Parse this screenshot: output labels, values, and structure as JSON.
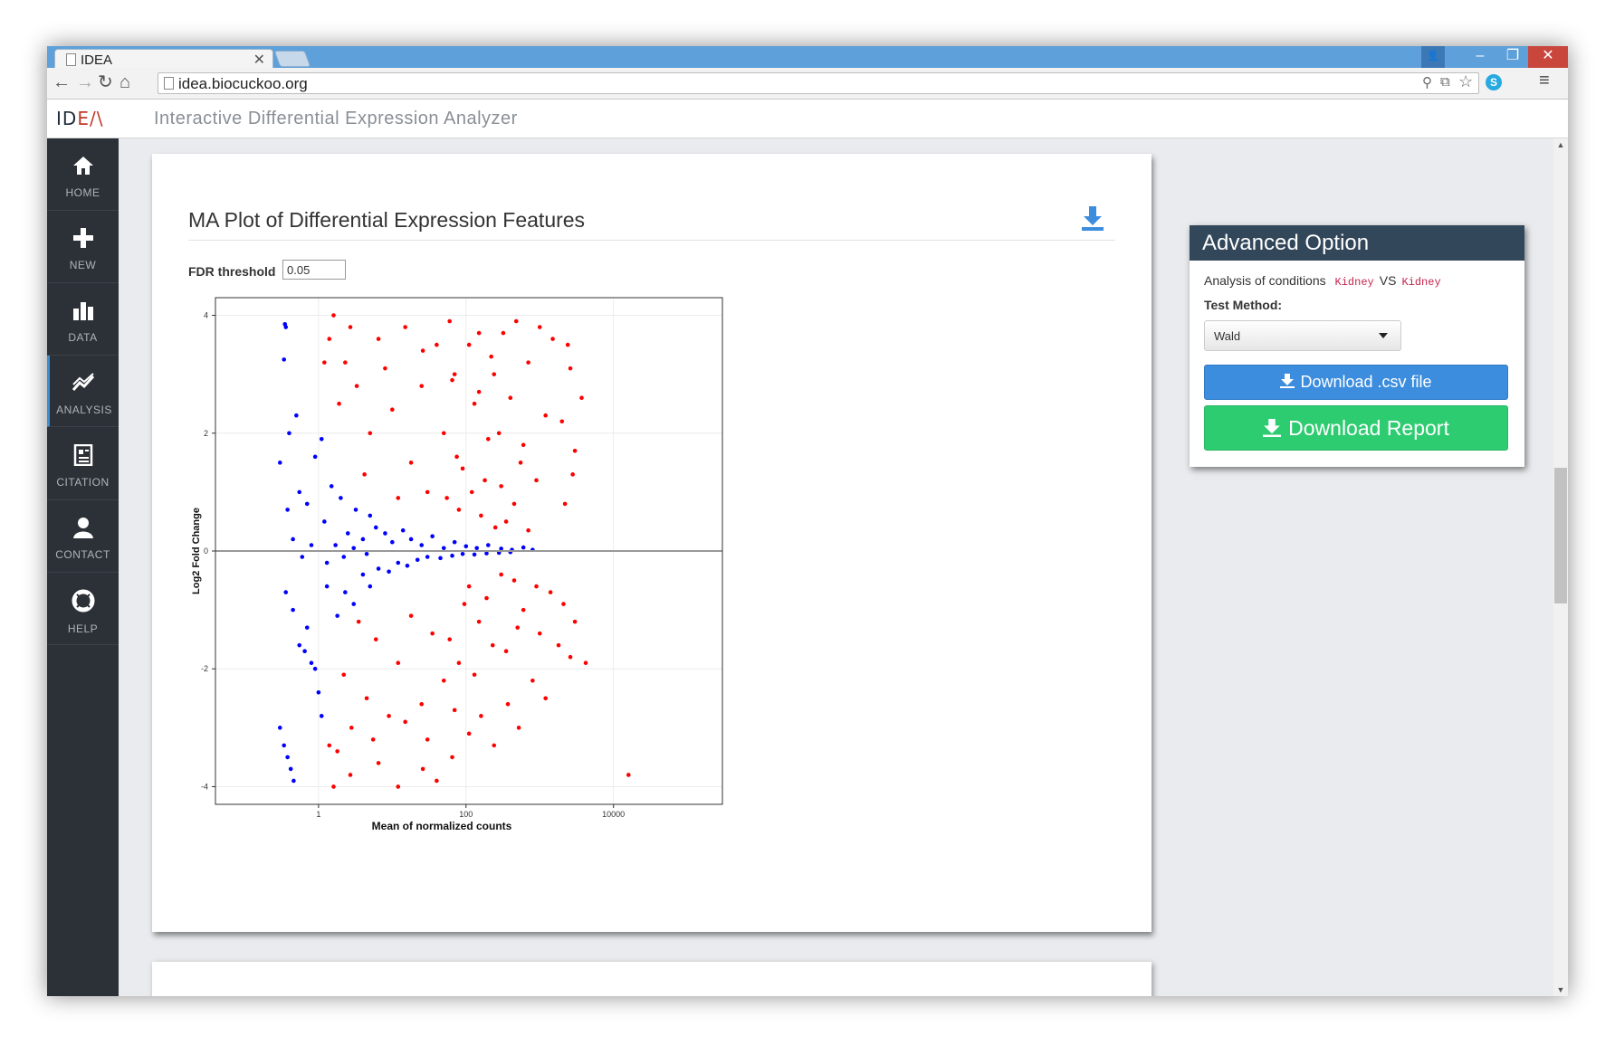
{
  "browser": {
    "tab_title": "IDEA",
    "tab_close": "×",
    "url": "idea.biocuckoo.org",
    "controls": {
      "back": "←",
      "forward": "→",
      "reload": "↻",
      "home": "⌂",
      "menu": "≡",
      "minimize": "–",
      "maximize": "❐",
      "close": "✕",
      "user": "👤",
      "zoom": "⚲",
      "translate": "⧉",
      "star": "☆",
      "skype": "S"
    }
  },
  "app": {
    "logo_main": "ID",
    "logo_accent": "E/\\",
    "title": "Interactive Differential Expression Analyzer"
  },
  "sidebar": {
    "items": [
      {
        "label": "HOME",
        "icon": "home-icon",
        "glyph": "⌂"
      },
      {
        "label": "NEW",
        "icon": "plus-icon",
        "glyph": "✚"
      },
      {
        "label": "DATA",
        "icon": "bar-chart-icon",
        "glyph": "▮"
      },
      {
        "label": "ANALYSIS",
        "icon": "line-chart-icon",
        "glyph": "⩘"
      },
      {
        "label": "CITATION",
        "icon": "document-icon",
        "glyph": "▤"
      },
      {
        "label": "CONTACT",
        "icon": "user-icon",
        "glyph": "●"
      },
      {
        "label": "HELP",
        "icon": "lifebuoy-icon",
        "glyph": "⊚"
      }
    ],
    "active": "ANALYSIS"
  },
  "main": {
    "title": "MA Plot of Differential Expression Features",
    "fdr_label": "FDR threshold",
    "fdr_value": "0.05"
  },
  "advanced": {
    "title": "Advanced Option",
    "conditions_label": "Analysis of conditions",
    "condition_a": "Kidney",
    "vs": "VS",
    "condition_b": "Kidney",
    "test_method_label": "Test Method:",
    "test_method_value": "Wald",
    "download_csv": "Download .csv file",
    "download_report": "Download Report"
  },
  "colors": {
    "significant": "#ff0000",
    "not_significant": "#0000ff",
    "csv_button": "#3c8dde",
    "report_button": "#2ecc71",
    "panel_header": "#33475a",
    "sidebar": "#2c3138"
  },
  "chart_data": {
    "type": "scatter",
    "xlabel": "Mean of normalized counts",
    "ylabel": "Log2 Fold Change",
    "x_scale": "log10",
    "xlim": [
      0.04,
      300000
    ],
    "ylim": [
      -4.3,
      4.3
    ],
    "x_ticks": [
      1,
      100,
      10000
    ],
    "x_tick_labels": [
      "1",
      "100",
      "10000"
    ],
    "y_ticks": [
      -4,
      -2,
      0,
      2,
      4
    ],
    "y_tick_labels": [
      "-4",
      "-2",
      "0",
      "2",
      "4"
    ],
    "hline": 0,
    "grid": true,
    "legend": "none",
    "series": [
      {
        "color": "#ff0000",
        "points": [
          [
            1.6,
            4.0
          ],
          [
            2.7,
            3.8
          ],
          [
            6.5,
            3.6
          ],
          [
            15,
            3.8
          ],
          [
            26,
            3.4
          ],
          [
            40,
            3.5
          ],
          [
            60,
            3.9
          ],
          [
            70,
            3.0
          ],
          [
            110,
            3.5
          ],
          [
            150,
            3.7
          ],
          [
            240,
            3.0
          ],
          [
            320,
            3.7
          ],
          [
            480,
            3.9
          ],
          [
            700,
            3.2
          ],
          [
            1000,
            3.8
          ],
          [
            1500,
            3.6
          ],
          [
            2400,
            3.5
          ],
          [
            2600,
            3.1
          ],
          [
            3700,
            2.6
          ],
          [
            2000,
            2.2
          ],
          [
            3000,
            1.7
          ],
          [
            2200,
            0.8
          ],
          [
            2800,
            1.3
          ],
          [
            1200,
            2.3
          ],
          [
            900,
            1.2
          ],
          [
            600,
            1.8
          ],
          [
            400,
            2.6
          ],
          [
            300,
            1.1
          ],
          [
            200,
            1.9
          ],
          [
            130,
            2.5
          ],
          [
            90,
            1.4
          ],
          [
            80,
            0.7
          ],
          [
            50,
            2.0
          ],
          [
            30,
            1.0
          ],
          [
            25,
            2.8
          ],
          [
            18,
            1.5
          ],
          [
            12,
            0.9
          ],
          [
            10,
            2.4
          ],
          [
            8,
            3.1
          ],
          [
            5,
            2.0
          ],
          [
            4.2,
            1.3
          ],
          [
            3.3,
            2.8
          ],
          [
            2.3,
            3.2
          ],
          [
            1.9,
            2.5
          ],
          [
            1.4,
            3.6
          ],
          [
            1.2,
            3.2
          ],
          [
            160,
            0.6
          ],
          [
            250,
            0.4
          ],
          [
            350,
            0.5
          ],
          [
            700,
            0.35
          ],
          [
            55,
            0.9
          ],
          [
            120,
            1.0
          ],
          [
            180,
            1.2
          ],
          [
            280,
            2.0
          ],
          [
            450,
            0.8
          ],
          [
            550,
            1.5
          ],
          [
            65,
            2.9
          ],
          [
            150,
            2.7
          ],
          [
            75,
            1.6
          ],
          [
            220,
            3.3
          ],
          [
            1.6,
            -4.0
          ],
          [
            2.7,
            -3.8
          ],
          [
            6.5,
            -3.6
          ],
          [
            12,
            -4.0
          ],
          [
            26,
            -3.7
          ],
          [
            40,
            -3.9
          ],
          [
            65,
            -3.5
          ],
          [
            110,
            -3.1
          ],
          [
            160,
            -2.8
          ],
          [
            240,
            -3.3
          ],
          [
            370,
            -2.6
          ],
          [
            520,
            -3.0
          ],
          [
            800,
            -2.2
          ],
          [
            1200,
            -2.5
          ],
          [
            1800,
            -1.6
          ],
          [
            2600,
            -1.8
          ],
          [
            3000,
            -1.2
          ],
          [
            2100,
            -0.9
          ],
          [
            1400,
            -0.7
          ],
          [
            900,
            -0.6
          ],
          [
            600,
            -1.0
          ],
          [
            450,
            -0.5
          ],
          [
            300,
            -0.4
          ],
          [
            230,
            -1.6
          ],
          [
            150,
            -1.2
          ],
          [
            95,
            -0.9
          ],
          [
            80,
            -1.9
          ],
          [
            50,
            -2.2
          ],
          [
            35,
            -1.4
          ],
          [
            25,
            -2.6
          ],
          [
            18,
            -1.1
          ],
          [
            12,
            -1.9
          ],
          [
            9,
            -2.8
          ],
          [
            6,
            -1.5
          ],
          [
            4.5,
            -2.5
          ],
          [
            3.5,
            -1.2
          ],
          [
            2.8,
            -3.0
          ],
          [
            2.2,
            -2.1
          ],
          [
            1.8,
            -3.4
          ],
          [
            1.4,
            -3.3
          ],
          [
            5.5,
            -3.2
          ],
          [
            30,
            -3.2
          ],
          [
            70,
            -2.7
          ],
          [
            130,
            -2.1
          ],
          [
            190,
            -0.8
          ],
          [
            350,
            -1.7
          ],
          [
            500,
            -1.3
          ],
          [
            1000,
            -1.4
          ],
          [
            15,
            -2.9
          ],
          [
            60,
            -1.5
          ],
          [
            110,
            -0.6
          ],
          [
            4200,
            -1.9
          ],
          [
            16000,
            -3.8
          ]
        ]
      },
      {
        "color": "#0000ff",
        "points": [
          [
            0.35,
            3.85
          ],
          [
            0.36,
            3.8
          ],
          [
            0.34,
            3.25
          ],
          [
            0.5,
            2.3
          ],
          [
            0.4,
            2.0
          ],
          [
            0.3,
            1.5
          ],
          [
            0.38,
            0.7
          ],
          [
            0.55,
            1.0
          ],
          [
            0.7,
            0.8
          ],
          [
            0.9,
            1.6
          ],
          [
            1.1,
            1.9
          ],
          [
            1.2,
            0.5
          ],
          [
            1.5,
            1.1
          ],
          [
            2.0,
            0.9
          ],
          [
            2.5,
            0.3
          ],
          [
            3.2,
            0.7
          ],
          [
            4.0,
            0.2
          ],
          [
            5,
            0.6
          ],
          [
            6,
            0.4
          ],
          [
            8,
            0.3
          ],
          [
            10,
            0.15
          ],
          [
            14,
            0.35
          ],
          [
            18,
            0.2
          ],
          [
            25,
            0.1
          ],
          [
            35,
            0.25
          ],
          [
            50,
            0.05
          ],
          [
            70,
            0.15
          ],
          [
            100,
            0.08
          ],
          [
            140,
            0.05
          ],
          [
            200,
            0.1
          ],
          [
            300,
            0.04
          ],
          [
            420,
            0.02
          ],
          [
            600,
            0.06
          ],
          [
            800,
            0.02
          ],
          [
            0.45,
            0.2
          ],
          [
            0.6,
            -0.1
          ],
          [
            0.8,
            0.1
          ],
          [
            1.3,
            -0.2
          ],
          [
            1.7,
            0.1
          ],
          [
            2.2,
            -0.1
          ],
          [
            3,
            0.05
          ],
          [
            4.5,
            -0.05
          ],
          [
            0.36,
            -0.7
          ],
          [
            0.45,
            -1.0
          ],
          [
            0.55,
            -1.6
          ],
          [
            0.7,
            -1.3
          ],
          [
            0.9,
            -2.0
          ],
          [
            1.1,
            -2.8
          ],
          [
            1.3,
            -0.6
          ],
          [
            1.8,
            -1.1
          ],
          [
            2.3,
            -0.7
          ],
          [
            3.0,
            -0.9
          ],
          [
            4,
            -0.4
          ],
          [
            5,
            -0.6
          ],
          [
            6.5,
            -0.3
          ],
          [
            9,
            -0.35
          ],
          [
            12,
            -0.2
          ],
          [
            16,
            -0.25
          ],
          [
            22,
            -0.15
          ],
          [
            30,
            -0.1
          ],
          [
            45,
            -0.12
          ],
          [
            65,
            -0.08
          ],
          [
            90,
            -0.05
          ],
          [
            130,
            -0.06
          ],
          [
            190,
            -0.04
          ],
          [
            280,
            -0.03
          ],
          [
            400,
            -0.02
          ],
          [
            0.3,
            -3.0
          ],
          [
            0.34,
            -3.3
          ],
          [
            0.38,
            -3.5
          ],
          [
            0.42,
            -3.7
          ],
          [
            0.46,
            -3.9
          ],
          [
            1.0,
            -2.4
          ],
          [
            0.8,
            -1.9
          ],
          [
            0.65,
            -1.7
          ]
        ]
      }
    ]
  }
}
